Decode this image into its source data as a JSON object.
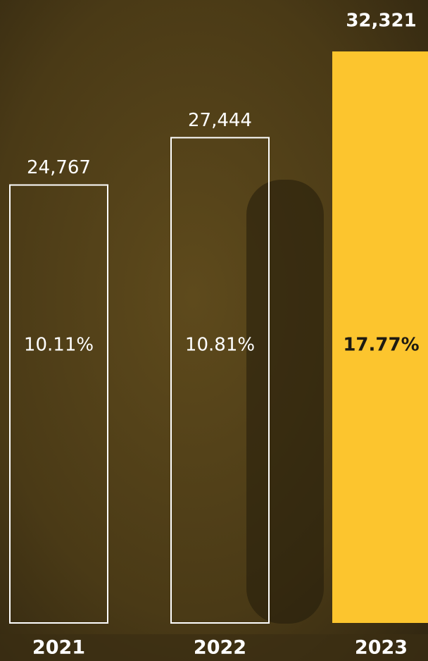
{
  "chart_data": {
    "type": "bar",
    "categories": [
      "2021",
      "2022",
      "2023"
    ],
    "values": [
      24767,
      27444,
      32321
    ],
    "value_labels": [
      "24,767",
      "27,444",
      "32,321"
    ],
    "percentages": [
      10.11,
      10.81,
      17.77
    ],
    "percentage_labels": [
      "10.11%",
      "10.81%",
      "17.77%"
    ],
    "color": "#fcc52e",
    "outline_color": "#ffffff"
  }
}
